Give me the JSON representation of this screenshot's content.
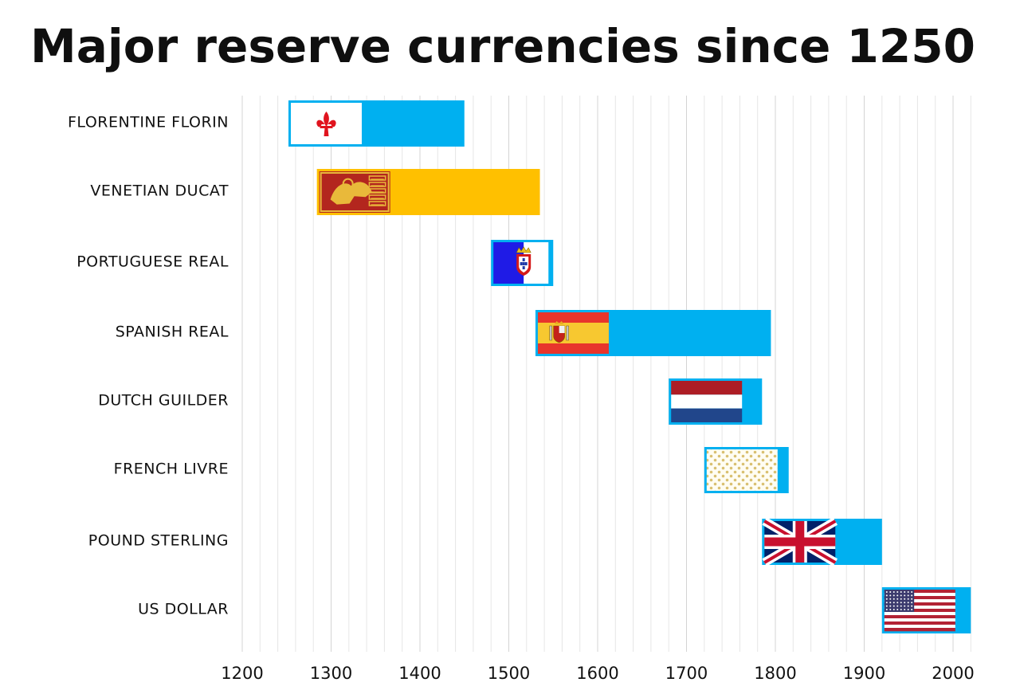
{
  "title": "Major reserve currencies since 1250",
  "chart_data": {
    "type": "bar",
    "orientation": "horizontal-timeline",
    "title": "Major reserve currencies since 1250",
    "xlabel": "",
    "ylabel": "",
    "xlim": [
      1200,
      2020
    ],
    "xticks": [
      1200,
      1300,
      1400,
      1500,
      1600,
      1700,
      1800,
      1900,
      2000
    ],
    "grid": true,
    "series": [
      {
        "label": "FLORENTINE FLORIN",
        "start": 1252,
        "end": 1450,
        "color": "#00b0f0",
        "flag": "florence-flag"
      },
      {
        "label": "VENETIAN DUCAT",
        "start": 1284,
        "end": 1535,
        "color": "#ffc000",
        "flag": "venice-flag"
      },
      {
        "label": "PORTUGUESE REAL",
        "start": 1480,
        "end": 1550,
        "color": "#00b0f0",
        "flag": "portugal-flag"
      },
      {
        "label": "SPANISH REAL",
        "start": 1530,
        "end": 1795,
        "color": "#00b0f0",
        "flag": "spain-flag"
      },
      {
        "label": "DUTCH GUILDER",
        "start": 1680,
        "end": 1785,
        "color": "#00b0f0",
        "flag": "netherlands-flag"
      },
      {
        "label": "FRENCH LIVRE",
        "start": 1720,
        "end": 1815,
        "color": "#00b0f0",
        "flag": "france-flag"
      },
      {
        "label": "POUND STERLING",
        "start": 1785,
        "end": 1920,
        "color": "#00b0f0",
        "flag": "uk-flag"
      },
      {
        "label": "US DOLLAR",
        "start": 1920,
        "end": 2020,
        "color": "#00b0f0",
        "flag": "us-flag"
      }
    ]
  }
}
